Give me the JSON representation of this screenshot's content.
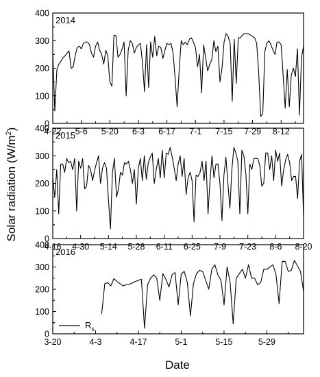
{
  "figure": {
    "ylabel_main": "Solar radiation (W/m",
    "ylabel_sup": "2",
    "ylabel_close": ")",
    "xlabel": "Date",
    "legend_label_main": "R",
    "legend_label_sub": "s"
  },
  "chart_data": [
    {
      "type": "line",
      "year": "2014",
      "x_ticks": [
        "4-22",
        "5-6",
        "5-20",
        "6-3",
        "6-17",
        "7-1",
        "7-15",
        "7-29",
        "8-12"
      ],
      "x_tick_dates": [
        "2014-04-22",
        "2014-05-06",
        "2014-05-20",
        "2014-06-03",
        "2014-06-17",
        "2014-07-01",
        "2014-07-15",
        "2014-07-29",
        "2014-08-12"
      ],
      "xlim": [
        "2014-04-22",
        "2014-08-23"
      ],
      "ylim": [
        0,
        400
      ],
      "y_ticks": [
        "0",
        "100",
        "200",
        "300",
        "400"
      ],
      "series": [
        {
          "start_date": "2014-04-22",
          "values": [
            255,
            45,
            195,
            215,
            225,
            238,
            245,
            255,
            262,
            200,
            205,
            245,
            275,
            280,
            270,
            290,
            295,
            295,
            285,
            255,
            240,
            280,
            295,
            265,
            250,
            215,
            265,
            245,
            150,
            135,
            320,
            318,
            240,
            250,
            270,
            295,
            100,
            265,
            300,
            290,
            255,
            275,
            285,
            290,
            220,
            115,
            285,
            130,
            295,
            240,
            315,
            245,
            280,
            275,
            235,
            265,
            290,
            285,
            290,
            255,
            165,
            60,
            195,
            300,
            285,
            295,
            285,
            305,
            310,
            295,
            275,
            205,
            250,
            110,
            285,
            235,
            190,
            215,
            230,
            300,
            260,
            280,
            150,
            200,
            295,
            325,
            315,
            290,
            80,
            305,
            145,
            310,
            310,
            320,
            325,
            325,
            325,
            320,
            315,
            310,
            290,
            185,
            25,
            35,
            260,
            290,
            300,
            285,
            265,
            250,
            295,
            295,
            285,
            175,
            55,
            195,
            60,
            175,
            200,
            170,
            270,
            30,
            240,
            280,
            290,
            290,
            260,
            240,
            250,
            280,
            290,
            265,
            165,
            150
          ]
        }
      ]
    },
    {
      "type": "line",
      "year": "2015",
      "x_ticks": [
        "4-16",
        "4-30",
        "5-14",
        "5-28",
        "6-11",
        "6-25",
        "7-9",
        "7-23",
        "8-6",
        "8-20"
      ],
      "x_tick_dates": [
        "2015-04-16",
        "2015-04-30",
        "2015-05-14",
        "2015-05-28",
        "2015-06-11",
        "2015-06-25",
        "2015-07-09",
        "2015-07-23",
        "2015-08-06",
        "2015-08-20"
      ],
      "xlim": [
        "2015-04-16",
        "2015-08-20"
      ],
      "ylim": [
        0,
        400
      ],
      "y_ticks": [
        "0",
        "100",
        "200",
        "300",
        "400"
      ],
      "series": [
        {
          "start_date": "2015-04-16",
          "values": [
            220,
            150,
            250,
            90,
            270,
            270,
            240,
            290,
            275,
            280,
            250,
            290,
            100,
            280,
            255,
            290,
            180,
            190,
            265,
            250,
            210,
            245,
            275,
            300,
            200,
            255,
            275,
            255,
            140,
            35,
            240,
            290,
            150,
            180,
            240,
            230,
            275,
            270,
            280,
            250,
            200,
            250,
            125,
            255,
            290,
            210,
            300,
            215,
            275,
            295,
            310,
            200,
            250,
            290,
            220,
            320,
            220,
            310,
            305,
            330,
            295,
            255,
            210,
            270,
            300,
            225,
            290,
            160,
            220,
            240,
            210,
            60,
            230,
            225,
            240,
            280,
            210,
            280,
            90,
            210,
            300,
            220,
            270,
            270,
            200,
            65,
            230,
            295,
            200,
            110,
            250,
            330,
            310,
            280,
            90,
            320,
            300,
            235,
            90,
            270,
            250,
            290,
            290,
            290,
            265,
            190,
            200,
            310,
            310,
            250,
            300,
            210,
            320,
            280,
            310,
            190,
            250,
            285,
            305,
            275,
            210,
            225,
            225,
            145,
            280,
            305,
            80,
            250,
            295,
            265,
            185
          ]
        }
      ]
    },
    {
      "type": "line",
      "year": "2016",
      "x_ticks": [
        "3-20",
        "4-3",
        "4-17",
        "5-1",
        "5-15",
        "5-29"
      ],
      "x_tick_dates": [
        "2016-03-20",
        "2016-04-03",
        "2016-04-17",
        "2016-05-01",
        "2016-05-15",
        "2016-05-29"
      ],
      "xlim": [
        "2016-03-20",
        "2016-06-10"
      ],
      "ylim": [
        0,
        400
      ],
      "y_ticks": [
        "0",
        "100",
        "200",
        "300",
        "400"
      ],
      "series": [
        {
          "start_date": "2016-04-05",
          "values": [
            90,
            225,
            230,
            215,
            248,
            235,
            225,
            215,
            220,
            222,
            228,
            235,
            240,
            245,
            25,
            220,
            250,
            265,
            250,
            150,
            270,
            245,
            210,
            265,
            275,
            130,
            270,
            280,
            230,
            80,
            225,
            270,
            285,
            280,
            240,
            200,
            290,
            310,
            265,
            240,
            130,
            300,
            230,
            45,
            250,
            270,
            290,
            250,
            310,
            250,
            250,
            220,
            230,
            290,
            290,
            300,
            310,
            265,
            135,
            325,
            325,
            280,
            285,
            330,
            305,
            280,
            190,
            300,
            230,
            190,
            245,
            260,
            210,
            150,
            70,
            55,
            170,
            255,
            220,
            200,
            170,
            310,
            275,
            205,
            255,
            240,
            265,
            135,
            165,
            215,
            240,
            275,
            205,
            290,
            185
          ]
        }
      ]
    }
  ]
}
